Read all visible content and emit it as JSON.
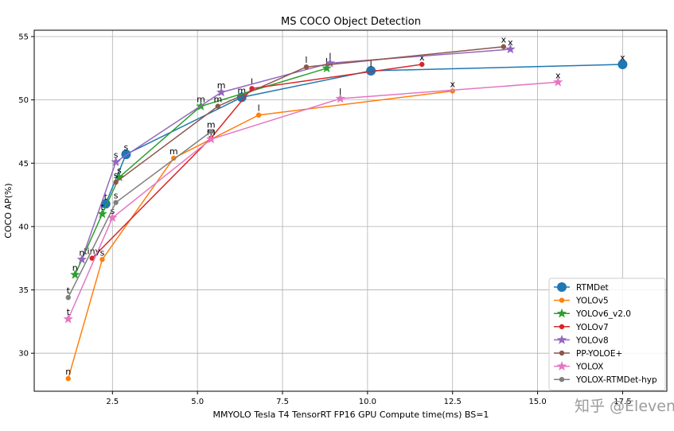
{
  "watermark": "知乎 @Eleven",
  "chart_data": {
    "type": "line",
    "title": "MS COCO Object Detection",
    "xlabel": "MMYOLO Tesla T4 TensorRT FP16 GPU Compute time(ms) BS=1",
    "ylabel": "COCO AP(%)",
    "xlim": [
      0.2,
      18.8
    ],
    "ylim": [
      27,
      55.5
    ],
    "xticks": [
      2.5,
      5.0,
      7.5,
      10.0,
      12.5,
      15.0,
      17.5
    ],
    "xtick_labels": [
      "2.5",
      "5.0",
      "7.5",
      "10.0",
      "12.5",
      "15.0",
      "17.5"
    ],
    "yticks": [
      30,
      35,
      40,
      45,
      50,
      55
    ],
    "ytick_labels": [
      "30",
      "35",
      "40",
      "45",
      "50",
      "55"
    ],
    "grid": true,
    "legend_position": "lower-right",
    "series": [
      {
        "name": "RTMDet",
        "color": "#1f77b4",
        "marker": "circle-large",
        "x": [
          2.3,
          2.9,
          6.3,
          10.1,
          17.5
        ],
        "y": [
          41.8,
          45.7,
          50.2,
          52.3,
          52.8
        ],
        "labels": [
          "t",
          "s",
          "m",
          "l",
          "x"
        ]
      },
      {
        "name": "YOLOv5",
        "color": "#ff7f0e",
        "marker": "circle",
        "x": [
          1.2,
          2.2,
          4.3,
          6.8,
          12.5
        ],
        "y": [
          28.0,
          37.4,
          45.4,
          48.8,
          50.7
        ],
        "labels": [
          "n",
          "s",
          "m",
          "l",
          "x"
        ]
      },
      {
        "name": "YOLOv6_v2.0",
        "color": "#2ca02c",
        "marker": "star",
        "x": [
          1.4,
          2.2,
          2.7,
          5.1,
          8.8
        ],
        "y": [
          36.2,
          41.0,
          43.9,
          49.5,
          52.5
        ],
        "labels": [
          "n",
          "t",
          "s",
          "m",
          "l"
        ]
      },
      {
        "name": "YOLOv7",
        "color": "#d62728",
        "marker": "circle",
        "x": [
          1.9,
          5.4,
          6.6,
          11.6
        ],
        "y": [
          37.5,
          47.0,
          50.9,
          52.8
        ],
        "labels": [
          "tiny",
          "m",
          "l",
          "x"
        ]
      },
      {
        "name": "YOLOv8",
        "color": "#9467bd",
        "marker": "star",
        "x": [
          1.6,
          2.6,
          5.7,
          8.9,
          14.2
        ],
        "y": [
          37.4,
          45.1,
          50.6,
          52.9,
          54.0
        ],
        "labels": [
          "n",
          "s",
          "m",
          "l",
          "x"
        ]
      },
      {
        "name": "PP-YOLOE+",
        "color": "#8c564b",
        "marker": "circle",
        "x": [
          2.6,
          5.6,
          8.2,
          14.0
        ],
        "y": [
          43.5,
          49.5,
          52.6,
          54.2
        ],
        "labels": [
          "s",
          "m",
          "l",
          "x"
        ]
      },
      {
        "name": "YOLOX",
        "color": "#e377c2",
        "marker": "star",
        "x": [
          1.2,
          2.5,
          5.4,
          9.2,
          15.6
        ],
        "y": [
          32.7,
          40.7,
          46.9,
          50.1,
          51.4
        ],
        "labels": [
          "t",
          "s",
          "m",
          "l",
          "x"
        ]
      },
      {
        "name": "YOLOX-RTMDet-hyp",
        "color": "#7f7f7f",
        "marker": "circle",
        "x": [
          1.2,
          2.6,
          5.4
        ],
        "y": [
          34.4,
          41.9,
          47.5
        ],
        "labels": [
          "t",
          "s",
          "m"
        ]
      }
    ]
  }
}
